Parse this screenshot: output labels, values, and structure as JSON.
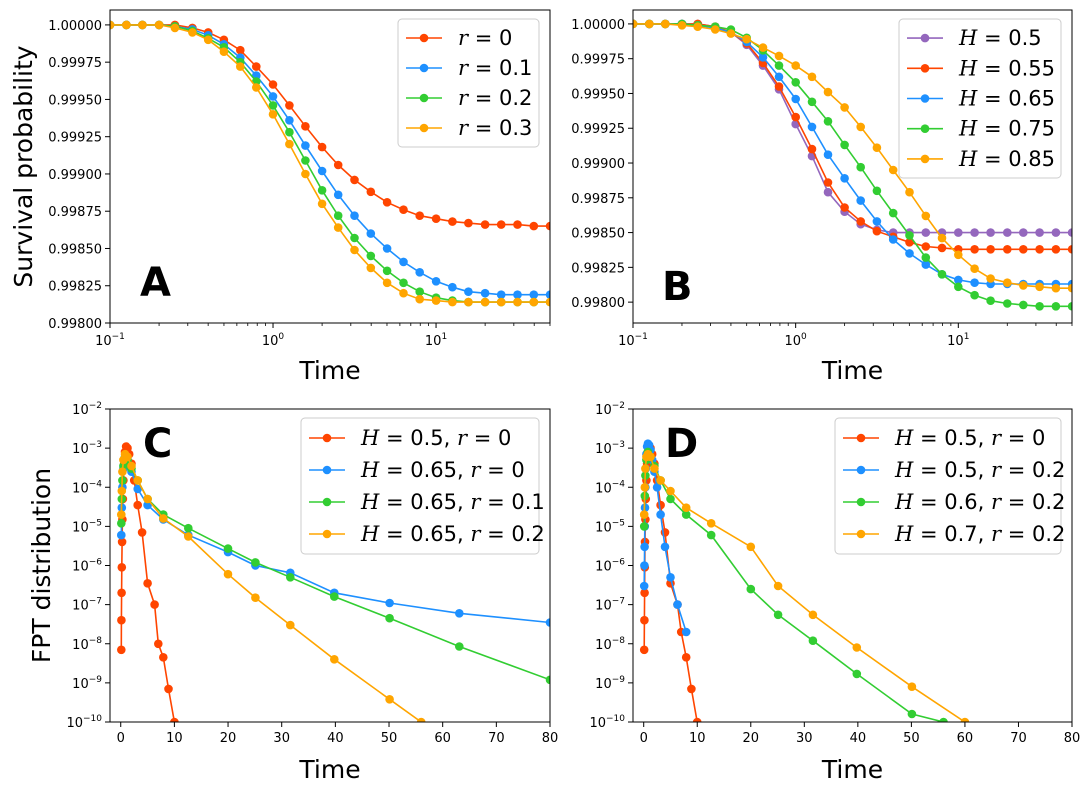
{
  "chart_data": [
    {
      "id": "A",
      "type": "line",
      "panel_label": "A",
      "xlabel": "Time",
      "ylabel": "Survival probability",
      "xscale": "log",
      "yscale": "linear",
      "xlim": [
        0.1,
        50
      ],
      "ylim": [
        0.998,
        1.0001
      ],
      "xticks": [
        0.1,
        1,
        10
      ],
      "xtick_labels": [
        {
          "base": "10",
          "exp": "−1"
        },
        {
          "base": "10",
          "exp": "0"
        },
        {
          "base": "10",
          "exp": "1"
        }
      ],
      "yticks": [
        0.998,
        0.99825,
        0.9985,
        0.99875,
        0.999,
        0.99925,
        0.9995,
        0.99975,
        1.0
      ],
      "ytick_labels": [
        "0.99800",
        "0.99825",
        "0.99850",
        "0.99875",
        "0.99900",
        "0.99925",
        "0.99950",
        "0.99975",
        "1.00000"
      ],
      "legend_position": "top-right",
      "x": [
        0.1,
        0.126,
        0.158,
        0.2,
        0.25,
        0.32,
        0.4,
        0.5,
        0.63,
        0.79,
        1.0,
        1.26,
        1.58,
        2.0,
        2.51,
        3.16,
        3.98,
        5.01,
        6.31,
        7.94,
        10.0,
        12.6,
        15.8,
        20.0,
        25.1,
        31.6,
        39.8,
        50.1
      ],
      "series": [
        {
          "name": "r = 0",
          "color": "#ff4500",
          "values": [
            1.0,
            1.0,
            1.0,
            1.0,
            1.0,
            0.99998,
            0.99995,
            0.9999,
            0.99983,
            0.99972,
            0.9996,
            0.99946,
            0.99932,
            0.99918,
            0.99906,
            0.99896,
            0.99888,
            0.99881,
            0.99876,
            0.99872,
            0.9987,
            0.99868,
            0.99867,
            0.99866,
            0.99866,
            0.99866,
            0.99865,
            0.99865
          ]
        },
        {
          "name": "r = 0.1",
          "color": "#1e90ff",
          "values": [
            1.0,
            1.0,
            1.0,
            1.0,
            0.99999,
            0.99997,
            0.99993,
            0.99987,
            0.99978,
            0.99966,
            0.99952,
            0.99936,
            0.99919,
            0.99902,
            0.99886,
            0.99872,
            0.9986,
            0.9985,
            0.99841,
            0.99834,
            0.99828,
            0.99824,
            0.99821,
            0.9982,
            0.99819,
            0.99819,
            0.99819,
            0.99819
          ]
        },
        {
          "name": "r = 0.2",
          "color": "#32cd32",
          "values": [
            1.0,
            1.0,
            1.0,
            1.0,
            0.99999,
            0.99996,
            0.99991,
            0.99985,
            0.99975,
            0.99962,
            0.99946,
            0.99928,
            0.99909,
            0.99889,
            0.99872,
            0.99857,
            0.99845,
            0.99835,
            0.99827,
            0.99821,
            0.99817,
            0.99815,
            0.99814,
            0.99814,
            0.99814,
            0.99814,
            0.99814,
            0.99814
          ]
        },
        {
          "name": "r = 0.3",
          "color": "#ffa500",
          "values": [
            1.0,
            1.0,
            1.0,
            1.0,
            0.99998,
            0.99995,
            0.9999,
            0.99982,
            0.99972,
            0.99958,
            0.9994,
            0.9992,
            0.999,
            0.9988,
            0.99864,
            0.99849,
            0.99837,
            0.99827,
            0.9982,
            0.99816,
            0.99815,
            0.99814,
            0.99814,
            0.99814,
            0.99814,
            0.99814,
            0.99814,
            0.99814
          ]
        }
      ]
    },
    {
      "id": "B",
      "type": "line",
      "panel_label": "B",
      "xlabel": "Time",
      "ylabel": "",
      "xscale": "log",
      "yscale": "linear",
      "xlim": [
        0.1,
        50
      ],
      "ylim": [
        0.99785,
        1.0001
      ],
      "xticks": [
        0.1,
        1,
        10
      ],
      "xtick_labels": [
        {
          "base": "10",
          "exp": "−1"
        },
        {
          "base": "10",
          "exp": "0"
        },
        {
          "base": "10",
          "exp": "1"
        }
      ],
      "yticks": [
        0.998,
        0.99825,
        0.9985,
        0.99875,
        0.999,
        0.99925,
        0.9995,
        0.99975,
        1.0
      ],
      "ytick_labels": [
        "0.99800",
        "0.99825",
        "0.99850",
        "0.99875",
        "0.99900",
        "0.99925",
        "0.99950",
        "0.99975",
        "1.00000"
      ],
      "legend_position": "top-right",
      "x": [
        0.1,
        0.126,
        0.158,
        0.2,
        0.25,
        0.32,
        0.4,
        0.5,
        0.63,
        0.79,
        1.0,
        1.26,
        1.58,
        2.0,
        2.51,
        3.16,
        3.98,
        5.01,
        6.31,
        7.94,
        10.0,
        12.6,
        15.8,
        20.0,
        25.1,
        31.6,
        39.8,
        50.1
      ],
      "series": [
        {
          "name": "H = 0.5",
          "color": "#9467bd",
          "values": [
            1.0,
            1.0,
            1.0,
            1.0,
            1.0,
            0.99998,
            0.99994,
            0.99985,
            0.9997,
            0.99953,
            0.99928,
            0.99905,
            0.99879,
            0.99865,
            0.99856,
            0.99852,
            0.9985,
            0.9985,
            0.9985,
            0.9985,
            0.9985,
            0.9985,
            0.9985,
            0.9985,
            0.9985,
            0.9985,
            0.9985,
            0.9985
          ]
        },
        {
          "name": "H = 0.55",
          "color": "#ff4500",
          "values": [
            1.0,
            1.0,
            1.0,
            1.0,
            1.0,
            0.99998,
            0.99994,
            0.99986,
            0.99972,
            0.99955,
            0.99933,
            0.9991,
            0.99886,
            0.99868,
            0.99858,
            0.99851,
            0.99847,
            0.99843,
            0.9984,
            0.99839,
            0.99838,
            0.99838,
            0.99838,
            0.99838,
            0.99838,
            0.99838,
            0.99838,
            0.99838
          ]
        },
        {
          "name": "H = 0.65",
          "color": "#1e90ff",
          "values": [
            1.0,
            1.0,
            1.0,
            1.0,
            0.99999,
            0.99997,
            0.99994,
            0.99987,
            0.99976,
            0.99962,
            0.99946,
            0.99926,
            0.99906,
            0.99889,
            0.99873,
            0.99858,
            0.99845,
            0.99835,
            0.99827,
            0.9982,
            0.99816,
            0.99814,
            0.99813,
            0.99813,
            0.99813,
            0.99813,
            0.99813,
            0.99813
          ]
        },
        {
          "name": "H = 0.75",
          "color": "#32cd32",
          "values": [
            1.0,
            1.0,
            1.0,
            1.0,
            0.99999,
            0.99998,
            0.99996,
            0.9999,
            0.99981,
            0.9997,
            0.99958,
            0.99944,
            0.9993,
            0.99913,
            0.99897,
            0.9988,
            0.99864,
            0.99848,
            0.99832,
            0.9982,
            0.99811,
            0.99805,
            0.99801,
            0.99799,
            0.99798,
            0.99797,
            0.99797,
            0.99797
          ]
        },
        {
          "name": "H = 0.85",
          "color": "#ffa500",
          "values": [
            1.0,
            1.0,
            1.0,
            0.99999,
            0.99998,
            0.99996,
            0.99993,
            0.99989,
            0.99983,
            0.99977,
            0.9997,
            0.99962,
            0.99951,
            0.9994,
            0.99926,
            0.99911,
            0.99895,
            0.99879,
            0.99862,
            0.99846,
            0.99834,
            0.99824,
            0.99817,
            0.99814,
            0.99812,
            0.99811,
            0.9981,
            0.9981
          ]
        }
      ]
    },
    {
      "id": "C",
      "type": "line",
      "panel_label": "C",
      "xlabel": "Time",
      "ylabel": "FPT distribution",
      "xscale": "linear",
      "yscale": "log",
      "xlim": [
        -2,
        80
      ],
      "ylim": [
        1e-10,
        0.01
      ],
      "xticks": [
        0,
        10,
        20,
        30,
        40,
        50,
        60,
        70,
        80
      ],
      "xtick_labels": [
        "0",
        "10",
        "20",
        "30",
        "40",
        "50",
        "60",
        "70",
        "80"
      ],
      "yticks": [
        1e-10,
        1e-09,
        1e-08,
        1e-07,
        1e-06,
        1e-05,
        0.0001,
        0.001,
        0.01
      ],
      "ytick_labels": [
        {
          "base": "10",
          "exp": "−10"
        },
        {
          "base": "10",
          "exp": "−9"
        },
        {
          "base": "10",
          "exp": "−8"
        },
        {
          "base": "10",
          "exp": "−7"
        },
        {
          "base": "10",
          "exp": "−6"
        },
        {
          "base": "10",
          "exp": "−5"
        },
        {
          "base": "10",
          "exp": "−4"
        },
        {
          "base": "10",
          "exp": "−3"
        },
        {
          "base": "10",
          "exp": "−2"
        }
      ],
      "legend_position": "top-right",
      "series": [
        {
          "name": "H = 0.5, r = 0",
          "color": "#ff4500",
          "x": [
            0.1,
            0.13,
            0.16,
            0.2,
            0.25,
            0.32,
            0.4,
            0.5,
            0.63,
            0.79,
            1.0,
            1.26,
            1.58,
            2.0,
            2.51,
            3.16,
            3.98,
            5.01,
            6.31,
            7.0,
            7.94,
            8.9,
            10.0
          ],
          "values": [
            7e-09,
            4e-08,
            2e-07,
            9e-07,
            4e-06,
            1.5e-05,
            5e-05,
            0.00015,
            0.0004,
            0.0008,
            0.0011,
            0.001,
            0.0007,
            0.0004,
            0.00015,
            3.5e-05,
            7e-06,
            3.5e-07,
            1e-07,
            1e-08,
            4.5e-09,
            7e-10,
            1e-10
          ]
        },
        {
          "name": "H = 0.65, r = 0",
          "color": "#1e90ff",
          "x": [
            0.1,
            0.2,
            0.32,
            0.5,
            0.79,
            1.26,
            2.0,
            3.16,
            5.01,
            7.94,
            12.6,
            20.0,
            25.1,
            31.6,
            39.8,
            50.1,
            63.1,
            80
          ],
          "values": [
            6e-06,
            3e-05,
            0.0001,
            0.0003,
            0.0006,
            0.0005,
            0.00025,
            9e-05,
            3.5e-05,
            1.5e-05,
            6e-06,
            2.2e-06,
            1e-06,
            6.5e-07,
            2e-07,
            1.1e-07,
            6e-08,
            3.5e-08
          ]
        },
        {
          "name": "H = 0.65, r = 0.1",
          "color": "#32cd32",
          "x": [
            0.1,
            0.2,
            0.32,
            0.5,
            0.79,
            1.26,
            2.0,
            3.16,
            5.01,
            7.94,
            12.6,
            20.0,
            25.1,
            31.6,
            39.8,
            50.1,
            63.1,
            80
          ],
          "values": [
            1.2e-05,
            5e-05,
            0.00015,
            0.00035,
            0.0006,
            0.0005,
            0.0003,
            0.00015,
            5e-05,
            2e-05,
            9e-06,
            2.7e-06,
            1.2e-06,
            5e-07,
            1.6e-07,
            4.5e-08,
            8.5e-09,
            1.2e-09
          ]
        },
        {
          "name": "H = 0.65, r = 0.2",
          "color": "#ffa500",
          "x": [
            0.1,
            0.2,
            0.32,
            0.5,
            0.79,
            1.26,
            2.0,
            3.16,
            5.01,
            7.94,
            12.6,
            20.0,
            25.1,
            31.6,
            39.8,
            50.1,
            56
          ],
          "values": [
            2e-05,
            8e-05,
            0.00025,
            0.0005,
            0.0007,
            0.0006,
            0.00035,
            0.00015,
            5e-05,
            1.6e-05,
            5.5e-06,
            6e-07,
            1.5e-07,
            3e-08,
            4e-09,
            3.8e-10,
            1e-10
          ]
        }
      ]
    },
    {
      "id": "D",
      "type": "line",
      "panel_label": "D",
      "xlabel": "Time",
      "ylabel": "",
      "xscale": "linear",
      "yscale": "log",
      "xlim": [
        -2,
        80
      ],
      "ylim": [
        1e-10,
        0.01
      ],
      "xticks": [
        0,
        10,
        20,
        30,
        40,
        50,
        60,
        70,
        80
      ],
      "xtick_labels": [
        "0",
        "10",
        "20",
        "30",
        "40",
        "50",
        "60",
        "70",
        "80"
      ],
      "yticks": [
        1e-10,
        1e-09,
        1e-08,
        1e-07,
        1e-06,
        1e-05,
        0.0001,
        0.001,
        0.01
      ],
      "ytick_labels": [
        {
          "base": "10",
          "exp": "−10"
        },
        {
          "base": "10",
          "exp": "−9"
        },
        {
          "base": "10",
          "exp": "−8"
        },
        {
          "base": "10",
          "exp": "−7"
        },
        {
          "base": "10",
          "exp": "−6"
        },
        {
          "base": "10",
          "exp": "−5"
        },
        {
          "base": "10",
          "exp": "−4"
        },
        {
          "base": "10",
          "exp": "−3"
        },
        {
          "base": "10",
          "exp": "−2"
        }
      ],
      "legend_position": "top-right",
      "series": [
        {
          "name": "H = 0.5, r = 0",
          "color": "#ff4500",
          "x": [
            0.1,
            0.13,
            0.16,
            0.2,
            0.25,
            0.32,
            0.4,
            0.5,
            0.63,
            0.79,
            1.0,
            1.26,
            1.58,
            2.0,
            2.51,
            3.16,
            3.98,
            5.01,
            6.31,
            7.0,
            7.94,
            8.9,
            10.0
          ],
          "values": [
            7e-09,
            4e-08,
            2e-07,
            9e-07,
            4e-06,
            1.5e-05,
            5e-05,
            0.00015,
            0.0004,
            0.0008,
            0.0011,
            0.001,
            0.0007,
            0.0004,
            0.00015,
            3.5e-05,
            7e-06,
            3.5e-07,
            1e-07,
            2e-08,
            4.5e-09,
            7e-10,
            1e-10
          ]
        },
        {
          "name": "H = 0.5, r = 0.2",
          "color": "#1e90ff",
          "x": [
            0.1,
            0.13,
            0.16,
            0.2,
            0.25,
            0.32,
            0.4,
            0.5,
            0.63,
            0.79,
            1.0,
            1.26,
            1.58,
            2.0,
            2.51,
            3.16,
            3.98,
            5.01,
            6.31,
            7.94
          ],
          "values": [
            3e-07,
            1e-06,
            3e-06,
            1e-05,
            3e-05,
            0.0001,
            0.0003,
            0.0007,
            0.0011,
            0.0013,
            0.0012,
            0.0009,
            0.0005,
            0.00025,
            0.0001,
            2e-05,
            3e-06,
            5e-07,
            1e-07,
            2e-08
          ]
        },
        {
          "name": "H = 0.6, r = 0.2",
          "color": "#32cd32",
          "x": [
            0.1,
            0.2,
            0.32,
            0.5,
            0.79,
            1.26,
            2.0,
            3.16,
            5.01,
            7.94,
            12.6,
            20.0,
            25.1,
            31.6,
            39.8,
            50.1,
            56
          ],
          "values": [
            1e-05,
            6e-05,
            0.0002,
            0.0005,
            0.0008,
            0.0006,
            0.00035,
            0.00015,
            5e-05,
            2e-05,
            6e-06,
            2.5e-07,
            5.5e-08,
            1.2e-08,
            1.7e-09,
            1.6e-10,
            1e-10
          ]
        },
        {
          "name": "H = 0.7, r = 0.2",
          "color": "#ffa500",
          "x": [
            0.1,
            0.2,
            0.32,
            0.5,
            0.79,
            1.26,
            2.0,
            3.16,
            5.01,
            7.94,
            12.6,
            20.0,
            25.1,
            31.6,
            39.8,
            50.1,
            60
          ],
          "values": [
            2e-05,
            0.0001,
            0.0003,
            0.0006,
            0.0007,
            0.0006,
            0.0003,
            0.00015,
            8e-05,
            3e-05,
            1.2e-05,
            3e-06,
            3e-07,
            5.5e-08,
            8e-09,
            8e-10,
            1e-10
          ]
        }
      ]
    }
  ]
}
